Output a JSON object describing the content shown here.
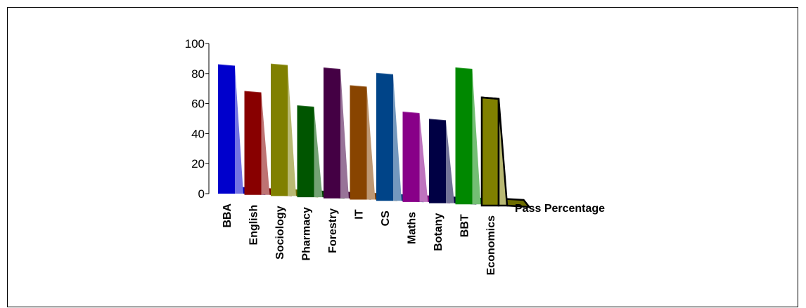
{
  "chart_data": {
    "type": "bar",
    "title": "",
    "xlabel": "",
    "ylabel": "",
    "ylim": [
      0,
      100
    ],
    "yticks": [
      "0",
      "20",
      "40",
      "60",
      "80",
      "100"
    ],
    "grid": false,
    "depth_axis_label": "Pass Percentage",
    "categories": [
      "BBA",
      "English",
      "Sociology",
      "Pharmacy",
      "Forestry",
      "IT",
      "CS",
      "Maths",
      "Botany",
      "BBT",
      "Economics"
    ],
    "values": [
      86,
      69,
      88,
      61,
      87,
      76,
      85,
      60,
      56,
      91,
      72
    ],
    "colors": [
      "#0000cc",
      "#880000",
      "#808000",
      "#005500",
      "#440044",
      "#884400",
      "#004488",
      "#880088",
      "#000044",
      "#008800",
      "#808000"
    ],
    "highlight_index": 10
  }
}
